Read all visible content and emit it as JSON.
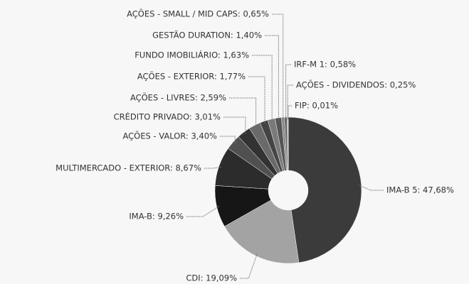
{
  "chart_data": {
    "type": "pie",
    "categories": [
      "IMA-B 5: 47,68%",
      "CDI: 19,09%",
      "IMA-B: 9,26%",
      "MULTIMERCADO - EXTERIOR: 8,67%",
      "AÇÕES - VALOR: 3,40%",
      "CRÉDITO PRIVADO: 3,01%",
      "AÇÕES - LIVRES: 2,59%",
      "AÇÕES - EXTERIOR: 1,77%",
      "FUNDO IMOBILIÁRIO: 1,63%",
      "GESTÃO DURATION: 1,40%",
      "AÇÕES - SMALL / MID CAPS: 0,65%",
      "IRF-M 1: 0,58%",
      "AÇÕES - DIVIDENDOS: 0,25%",
      "FIP: 0,01%"
    ],
    "values": [
      47.68,
      19.09,
      9.26,
      8.67,
      3.4,
      3.01,
      2.59,
      1.77,
      1.63,
      1.4,
      0.65,
      0.58,
      0.25,
      0.01
    ],
    "colors": [
      "#3b3b3b",
      "#a3a3a3",
      "#161616",
      "#2c2c2c",
      "#505050",
      "#333333",
      "#6a6a6a",
      "#444444",
      "#7a7a7a",
      "#555555",
      "#888888",
      "#666666",
      "#999999",
      "#777777"
    ]
  }
}
